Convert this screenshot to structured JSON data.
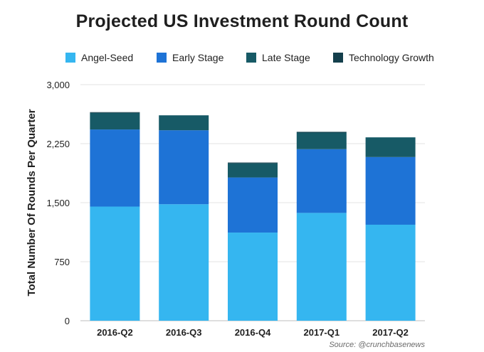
{
  "chart_data": {
    "type": "bar",
    "stacked": true,
    "title": "Projected US Investment Round Count",
    "xlabel": "",
    "ylabel": "Total Number Of Rounds Per Quarter",
    "categories": [
      "2016-Q2",
      "2016-Q3",
      "2016-Q4",
      "2017-Q1",
      "2017-Q2"
    ],
    "ylim": [
      0,
      3000
    ],
    "yticks": [
      0,
      750,
      1500,
      2250,
      3000
    ],
    "ytick_labels": [
      "0",
      "750",
      "1,500",
      "2,250",
      "3,000"
    ],
    "grid": true,
    "legend_position": "top",
    "series": [
      {
        "name": "Angel-Seed",
        "color": "#35b6f0",
        "values": [
          1450,
          1480,
          1120,
          1370,
          1220
        ]
      },
      {
        "name": "Early Stage",
        "color": "#1e73d6",
        "values": [
          980,
          940,
          700,
          810,
          860
        ]
      },
      {
        "name": "Late Stage",
        "color": "#175a66",
        "values": [
          210,
          190,
          180,
          210,
          250
        ]
      },
      {
        "name": "Technology Growth",
        "color": "#143f4c",
        "values": [
          10,
          0,
          10,
          10,
          0
        ]
      }
    ],
    "source": "Source: @crunchbasenews"
  }
}
